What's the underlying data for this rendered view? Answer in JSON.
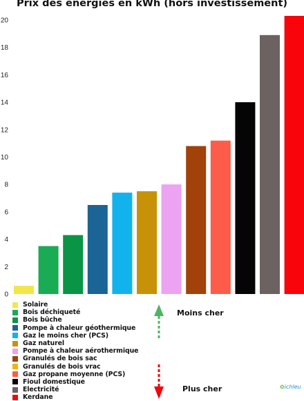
{
  "chart_data": {
    "type": "bar",
    "title": "Prix des énergies en kWh (hors investissement)",
    "ylim": [
      0,
      20.5
    ],
    "yticks": [
      0,
      2,
      4,
      6,
      8,
      10,
      12,
      14,
      16,
      18,
      20
    ],
    "grid": false,
    "legend_position": "bottom-left",
    "series": [
      {
        "name": "Solaire",
        "value": 0.6,
        "color": "#f2e64a"
      },
      {
        "name": "Bois déchiqueté",
        "value": 3.5,
        "color": "#1aab55"
      },
      {
        "name": "Bois bûche",
        "value": 4.3,
        "color": "#0a9446"
      },
      {
        "name": "Pompe à chaleur géothermique",
        "value": 6.5,
        "color": "#1b6496"
      },
      {
        "name": "Gaz le moins cher (PCS)",
        "value": 7.4,
        "color": "#12b3ec"
      },
      {
        "name": "Gaz naturel",
        "value": 7.5,
        "color": "#c89208"
      },
      {
        "name": "Pompe à chaleur aérothermique",
        "value": 8.0,
        "color": "#eba3f2"
      },
      {
        "name": "Granulés de bois sac",
        "value": 10.8,
        "color": "#a0420a"
      },
      {
        "name": "Granulés de bois vrac",
        "value": null,
        "color": "#f2b411"
      },
      {
        "name": "Gaz propane moyenne (PCS)",
        "value": 11.2,
        "color": "#fd5c4a"
      },
      {
        "name": "Fioul domestique",
        "value": 14.0,
        "color": "#050505"
      },
      {
        "name": "Electricité",
        "value": 18.9,
        "color": "#6c6262"
      },
      {
        "name": "Kerdane",
        "value": 20.3,
        "color": "#f8040a"
      }
    ]
  },
  "annotations": {
    "cheaper": "Moins cher",
    "dearer": "Plus cher",
    "cheaper_arrow_color": "#4fb565",
    "dearer_arrow_color": "#f2050b"
  },
  "brand": "ichleu"
}
